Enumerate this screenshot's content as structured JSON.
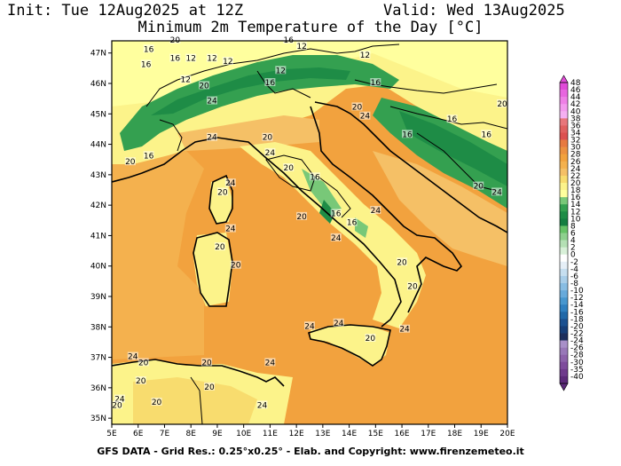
{
  "header": {
    "init": "Init: Tue 12Aug2025 at 12Z",
    "valid": "Valid: Wed 13Aug2025",
    "title": "Minimum 2m Temperature of the Day [°C]"
  },
  "footer": "GFS DATA - Grid Res.: 0.25°x0.25° - Elab. and Copyright: www.firenzemeteo.it",
  "map": {
    "lat_ticks": [
      "47N",
      "46N",
      "45N",
      "44N",
      "43N",
      "42N",
      "41N",
      "40N",
      "39N",
      "38N",
      "37N",
      "36N",
      "35N"
    ],
    "lon_ticks": [
      "5E",
      "6E",
      "7E",
      "8E",
      "9E",
      "10E",
      "11E",
      "12E",
      "13E",
      "14E",
      "15E",
      "16E",
      "17E",
      "18E",
      "19E",
      "20E"
    ],
    "contour_labels": [
      {
        "t": "20",
        "lon": 7.4,
        "lat": 47.4
      },
      {
        "t": "16",
        "lon": 11.7,
        "lat": 47.4
      },
      {
        "t": "12",
        "lon": 12.2,
        "lat": 47.2
      },
      {
        "t": "16",
        "lon": 6.4,
        "lat": 47.1
      },
      {
        "t": "12",
        "lon": 14.6,
        "lat": 46.9
      },
      {
        "t": "16",
        "lon": 7.4,
        "lat": 46.8
      },
      {
        "t": "12",
        "lon": 8.0,
        "lat": 46.8
      },
      {
        "t": "12",
        "lon": 8.8,
        "lat": 46.8
      },
      {
        "t": "12",
        "lon": 9.4,
        "lat": 46.7
      },
      {
        "t": "16",
        "lon": 6.3,
        "lat": 46.6
      },
      {
        "t": "12",
        "lon": 11.4,
        "lat": 46.4
      },
      {
        "t": "12",
        "lon": 7.8,
        "lat": 46.1
      },
      {
        "t": "16",
        "lon": 11.0,
        "lat": 46.0
      },
      {
        "t": "20",
        "lon": 8.5,
        "lat": 45.9
      },
      {
        "t": "16",
        "lon": 15.0,
        "lat": 46.0
      },
      {
        "t": "24",
        "lon": 8.8,
        "lat": 45.4
      },
      {
        "t": "20",
        "lon": 14.3,
        "lat": 45.2
      },
      {
        "t": "24",
        "lon": 14.6,
        "lat": 44.9
      },
      {
        "t": "20",
        "lon": 19.8,
        "lat": 45.3
      },
      {
        "t": "16",
        "lon": 17.9,
        "lat": 44.8
      },
      {
        "t": "24",
        "lon": 8.8,
        "lat": 44.2
      },
      {
        "t": "20",
        "lon": 10.9,
        "lat": 44.2
      },
      {
        "t": "16",
        "lon": 16.2,
        "lat": 44.3
      },
      {
        "t": "16",
        "lon": 19.2,
        "lat": 44.3
      },
      {
        "t": "24",
        "lon": 11.0,
        "lat": 43.7
      },
      {
        "t": "16",
        "lon": 6.4,
        "lat": 43.6
      },
      {
        "t": "20",
        "lon": 5.7,
        "lat": 43.4
      },
      {
        "t": "20",
        "lon": 11.7,
        "lat": 43.2
      },
      {
        "t": "16",
        "lon": 12.7,
        "lat": 42.9
      },
      {
        "t": "24",
        "lon": 9.5,
        "lat": 42.7
      },
      {
        "t": "20",
        "lon": 9.2,
        "lat": 42.4
      },
      {
        "t": "20",
        "lon": 18.9,
        "lat": 42.6
      },
      {
        "t": "24",
        "lon": 19.6,
        "lat": 42.4
      },
      {
        "t": "16",
        "lon": 13.5,
        "lat": 41.7
      },
      {
        "t": "24",
        "lon": 15.0,
        "lat": 41.8
      },
      {
        "t": "20",
        "lon": 12.2,
        "lat": 41.6
      },
      {
        "t": "16",
        "lon": 14.1,
        "lat": 41.4
      },
      {
        "t": "24",
        "lon": 9.5,
        "lat": 41.2
      },
      {
        "t": "24",
        "lon": 13.5,
        "lat": 40.9
      },
      {
        "t": "20",
        "lon": 9.1,
        "lat": 40.6
      },
      {
        "t": "20",
        "lon": 9.7,
        "lat": 40.0
      },
      {
        "t": "20",
        "lon": 16.0,
        "lat": 40.1
      },
      {
        "t": "20",
        "lon": 16.4,
        "lat": 39.3
      },
      {
        "t": "24",
        "lon": 12.5,
        "lat": 38.0
      },
      {
        "t": "24",
        "lon": 13.6,
        "lat": 38.1
      },
      {
        "t": "20",
        "lon": 14.8,
        "lat": 37.6
      },
      {
        "t": "24",
        "lon": 16.1,
        "lat": 37.9
      },
      {
        "t": "24",
        "lon": 5.8,
        "lat": 37.0
      },
      {
        "t": "20",
        "lon": 6.2,
        "lat": 36.8
      },
      {
        "t": "20",
        "lon": 8.6,
        "lat": 36.8
      },
      {
        "t": "24",
        "lon": 11.0,
        "lat": 36.8
      },
      {
        "t": "20",
        "lon": 6.1,
        "lat": 36.2
      },
      {
        "t": "20",
        "lon": 8.7,
        "lat": 36.0
      },
      {
        "t": "24",
        "lon": 5.3,
        "lat": 35.6
      },
      {
        "t": "20",
        "lon": 6.7,
        "lat": 35.5
      },
      {
        "t": "20",
        "lon": 5.2,
        "lat": 35.4
      },
      {
        "t": "24",
        "lon": 10.7,
        "lat": 35.4
      }
    ]
  },
  "colorbar": {
    "labels": [
      "48",
      "46",
      "44",
      "42",
      "40",
      "38",
      "36",
      "34",
      "32",
      "30",
      "28",
      "26",
      "24",
      "22",
      "20",
      "18",
      "16",
      "14",
      "12",
      "10",
      "8",
      "6",
      "4",
      "2",
      "0",
      "-2",
      "-4",
      "-6",
      "-8",
      "-10",
      "-12",
      "-14",
      "-16",
      "-18",
      "-20",
      "-22",
      "-24",
      "-26",
      "-28",
      "-30",
      "-35",
      "-40"
    ],
    "colors": [
      "#e04ad8",
      "#e766df",
      "#ee80e6",
      "#f39aee",
      "#f5b0f2",
      "#e8767b",
      "#e06060",
      "#dc5050",
      "#e77a40",
      "#ec9140",
      "#f2a23e",
      "#f4b14e",
      "#f5c066",
      "#f8dc6e",
      "#fcf38a",
      "#ffff9e",
      "#78c878",
      "#34a050",
      "#1e8c46",
      "#147e40",
      "#66c266",
      "#8ed08e",
      "#b5e0b5",
      "#d8f0d8",
      "#ffffff",
      "#e6eff7",
      "#c6dff0",
      "#a8cee9",
      "#88bde3",
      "#67aadb",
      "#4797cf",
      "#2f80c0",
      "#2068a8",
      "#1a5090",
      "#163e78",
      "#1c2e5c",
      "#a890c8",
      "#9878b8",
      "#8c62aa",
      "#7e4c9c",
      "#6e3a8c",
      "#5c2a7a"
    ]
  }
}
